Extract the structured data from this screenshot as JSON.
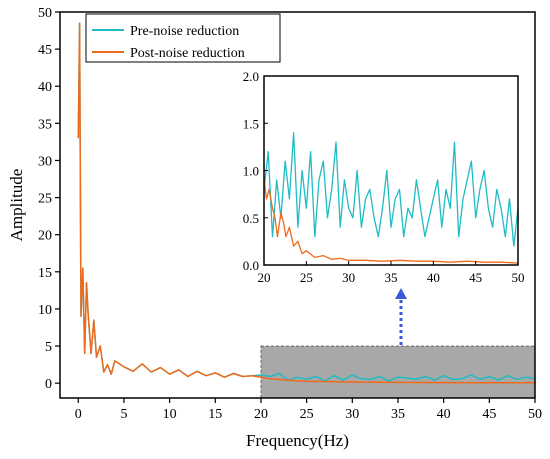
{
  "chart_data": [
    {
      "type": "line",
      "xlabel": "Frequency(Hz)",
      "ylabel": "Amplitude",
      "xlim": [
        -2,
        50
      ],
      "ylim": [
        -2,
        50
      ],
      "xticks": [
        0,
        5,
        10,
        15,
        20,
        25,
        30,
        35,
        40,
        45,
        50
      ],
      "yticks": [
        0,
        5,
        10,
        15,
        20,
        25,
        30,
        35,
        40,
        45,
        50
      ],
      "legend_position": "top-left",
      "grid": false,
      "highlight_region": {
        "x": [
          20,
          50
        ],
        "y": [
          -2,
          5
        ],
        "color": "#a8a8a8"
      },
      "series": [
        {
          "name": "Pre-noise reduction",
          "color": "#1fbcc4",
          "x": [
            0,
            0.15,
            0.3,
            0.5,
            0.7,
            0.9,
            1.1,
            1.4,
            1.7,
            2.0,
            2.4,
            2.8,
            3.2,
            3.6,
            4.0,
            5,
            6,
            7,
            8,
            9,
            10,
            11,
            12,
            13,
            14,
            15,
            16,
            17,
            18,
            19,
            20,
            21,
            22,
            23,
            24,
            25,
            26,
            27,
            28,
            29,
            30,
            31,
            32,
            33,
            34,
            35,
            36,
            37,
            38,
            39,
            40,
            41,
            42,
            43,
            44,
            45,
            46,
            47,
            48,
            49,
            50
          ],
          "y": [
            33,
            48.5,
            9,
            15.5,
            4,
            13.5,
            9,
            4,
            8.5,
            3.5,
            5,
            1.5,
            2.5,
            1.2,
            3.0,
            2.2,
            1.6,
            2.6,
            1.5,
            2.1,
            1.2,
            1.8,
            0.9,
            1.6,
            1.0,
            1.4,
            0.8,
            1.3,
            0.9,
            1.0,
            1.1,
            0.9,
            1.3,
            0.4,
            0.8,
            0.5,
            0.9,
            0.3,
            1.0,
            0.4,
            1.1,
            0.6,
            0.5,
            0.9,
            0.3,
            0.8,
            0.7,
            0.5,
            0.9,
            0.4,
            1.0,
            0.5,
            0.6,
            1.1,
            0.5,
            0.9,
            0.4,
            1.0,
            0.5,
            0.8,
            0.6
          ]
        },
        {
          "name": "Post-noise reduction",
          "color": "#f06a1c",
          "x": [
            0,
            0.15,
            0.3,
            0.5,
            0.7,
            0.9,
            1.1,
            1.4,
            1.7,
            2.0,
            2.4,
            2.8,
            3.2,
            3.6,
            4.0,
            5,
            6,
            7,
            8,
            9,
            10,
            11,
            12,
            13,
            14,
            15,
            16,
            17,
            18,
            19,
            20,
            21,
            22,
            23,
            24,
            25,
            30,
            35,
            40,
            45,
            50
          ],
          "y": [
            33,
            48.5,
            9,
            15.5,
            4,
            13.5,
            9,
            4,
            8.5,
            3.5,
            5,
            1.5,
            2.5,
            1.2,
            3.0,
            2.2,
            1.6,
            2.6,
            1.5,
            2.1,
            1.2,
            1.8,
            0.9,
            1.6,
            1.0,
            1.4,
            0.8,
            1.3,
            0.9,
            1.0,
            0.8,
            0.6,
            0.5,
            0.4,
            0.3,
            0.25,
            0.15,
            0.1,
            0.08,
            0.06,
            0.05
          ]
        }
      ]
    },
    {
      "type": "line",
      "role": "inset",
      "xlim": [
        20,
        50
      ],
      "ylim": [
        0,
        2.0
      ],
      "xticks": [
        20,
        25,
        30,
        35,
        40,
        45,
        50
      ],
      "yticks": [
        0.0,
        0.5,
        1.0,
        1.5,
        2.0
      ],
      "ytick_labels": [
        "0.0",
        "0.5",
        "1.0",
        "1.5",
        "2.0"
      ],
      "grid": false,
      "series": [
        {
          "name": "Pre-noise reduction",
          "color": "#1fbcc4",
          "x": [
            20.0,
            20.5,
            21.0,
            21.5,
            22.0,
            22.5,
            23.0,
            23.5,
            24.0,
            24.5,
            25.0,
            25.5,
            26.0,
            26.5,
            27.0,
            27.5,
            28.0,
            28.5,
            29.0,
            29.5,
            30.0,
            30.5,
            31.0,
            31.5,
            32.0,
            32.5,
            33.0,
            33.5,
            34.0,
            34.5,
            35.0,
            35.5,
            36.0,
            36.5,
            37.0,
            37.5,
            38.0,
            38.5,
            39.0,
            39.5,
            40.0,
            40.5,
            41.0,
            41.5,
            42.0,
            42.5,
            43.0,
            43.5,
            44.0,
            44.5,
            45.0,
            45.5,
            46.0,
            46.5,
            47.0,
            47.5,
            48.0,
            48.5,
            49.0,
            49.5,
            50.0
          ],
          "y": [
            0.8,
            1.2,
            0.3,
            0.9,
            0.5,
            1.1,
            0.7,
            1.4,
            0.4,
            1.0,
            0.6,
            1.2,
            0.3,
            0.9,
            1.1,
            0.5,
            0.8,
            1.3,
            0.4,
            0.9,
            0.6,
            0.5,
            1.0,
            0.4,
            0.7,
            0.8,
            0.5,
            0.3,
            0.6,
            1.0,
            0.4,
            0.7,
            0.8,
            0.3,
            0.6,
            0.5,
            0.9,
            0.6,
            0.3,
            0.5,
            0.7,
            0.9,
            0.4,
            0.8,
            0.6,
            1.3,
            0.3,
            0.7,
            0.9,
            1.1,
            0.5,
            0.8,
            1.0,
            0.6,
            0.4,
            0.8,
            0.6,
            0.3,
            0.7,
            0.2,
            0.6
          ]
        },
        {
          "name": "Post-noise reduction",
          "color": "#f06a1c",
          "x": [
            20.0,
            20.3,
            20.6,
            21.0,
            21.3,
            21.6,
            22.0,
            22.3,
            22.6,
            23.0,
            23.5,
            24.0,
            24.5,
            25.0,
            26,
            27,
            28,
            29,
            30,
            32,
            34,
            36,
            38,
            40,
            42,
            44,
            46,
            48,
            50
          ],
          "y": [
            0.9,
            0.7,
            0.8,
            0.6,
            0.5,
            0.3,
            0.55,
            0.45,
            0.3,
            0.4,
            0.2,
            0.25,
            0.12,
            0.15,
            0.08,
            0.1,
            0.06,
            0.07,
            0.05,
            0.05,
            0.04,
            0.05,
            0.04,
            0.04,
            0.03,
            0.04,
            0.03,
            0.03,
            0.02
          ]
        }
      ]
    }
  ],
  "colors": {
    "pre": "#1fbcc4",
    "post": "#f06a1c",
    "arrow": "#3b5bd6",
    "highlight": "#a8a8a8"
  }
}
